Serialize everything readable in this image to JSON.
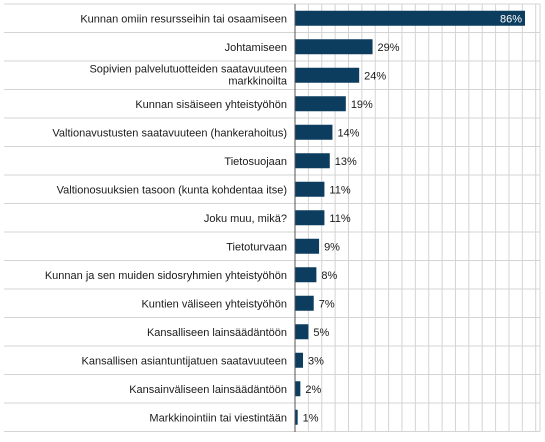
{
  "chart_data": {
    "type": "bar",
    "orientation": "horizontal",
    "categories": [
      "Kunnan omiin resursseihin tai osaamiseen",
      "Johtamiseen",
      "Sopivien palvelutuotteiden saatavuuteen markkinoilta",
      "Kunnan sisäiseen yhteistyöhön",
      "Valtionavustusten saatavuuteen (hankerahoitus)",
      "Tietosuojaan",
      "Valtionosuuksien tasoon (kunta kohdentaa itse)",
      "Joku muu, mikä?",
      "Tietoturvaan",
      "Kunnan ja sen muiden sidosryhmien yhteistyöhön",
      "Kuntien väliseen yhteistyöhön",
      "Kansalliseen lainsäädäntöön",
      "Kansallisen asiantuntijatuen saatavuuteen",
      "Kansainväliseen lainsäädäntöön",
      "Markkinointiin tai viestintään"
    ],
    "values": [
      86,
      29,
      24,
      19,
      14,
      13,
      11,
      11,
      9,
      8,
      7,
      5,
      3,
      2,
      1
    ],
    "value_labels": [
      "86%",
      "29%",
      "24%",
      "19%",
      "14%",
      "13%",
      "11%",
      "11%",
      "9%",
      "8%",
      "7%",
      "5%",
      "3%",
      "2%",
      "1%"
    ],
    "xlim": [
      0,
      90
    ],
    "grid": true,
    "bar_color": "#0c3c5e",
    "title": "",
    "xlabel": "",
    "ylabel": ""
  }
}
